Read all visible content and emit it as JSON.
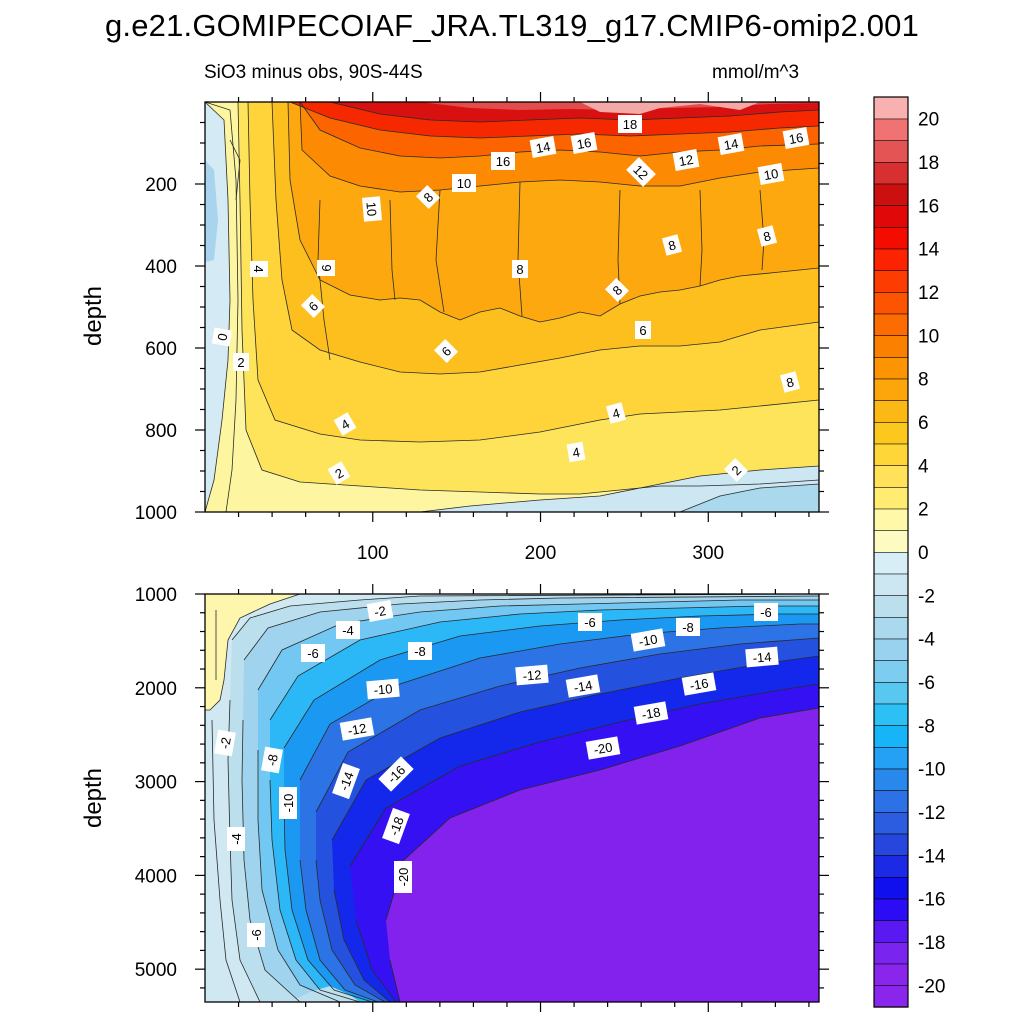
{
  "title": "g.e21.GOMIPECOIAF_JRA.TL319_g17.CMIP6-omip2.001",
  "subtitle_left": "SiO3 minus obs, 90S-44S",
  "subtitle_right": "mmol/m^3",
  "colors": {
    "contour_line": "#222222",
    "label_box": "#ffffff"
  },
  "chart_data": [
    {
      "type": "contour",
      "name": "upper panel",
      "title": "SiO3 minus obs, 90S-44S",
      "units": "mmol/m^3",
      "xlabel": "",
      "ylabel": "depth",
      "xlim": [
        0,
        366
      ],
      "ylim": [
        1000,
        0
      ],
      "x_ticks": [
        "100",
        "200",
        "300"
      ],
      "y_ticks": [
        "200",
        "400",
        "600",
        "800",
        "1000"
      ],
      "contour_labels": [
        "18",
        "16",
        "14",
        "16",
        "14",
        "16",
        "12",
        "12",
        "10",
        "10",
        "10",
        "8",
        "8",
        "8",
        "8",
        "8",
        "4",
        "6",
        "6",
        "6",
        "6",
        "8",
        "0",
        "2",
        "4",
        "4",
        "4",
        "2",
        "2",
        "0"
      ]
    },
    {
      "type": "contour",
      "name": "lower panel",
      "xlabel": "",
      "ylabel": "depth",
      "xlim": [
        0,
        366
      ],
      "ylim": [
        5350,
        1000
      ],
      "y_ticks": [
        "1000",
        "2000",
        "3000",
        "4000",
        "5000"
      ],
      "contour_labels": [
        "-2",
        "-4",
        "-6",
        "-6",
        "-6",
        "-8",
        "-10",
        "-8",
        "-10",
        "-12",
        "-14",
        "-16",
        "-14",
        "-12",
        "-18",
        "-20",
        "-2",
        "-8",
        "-10",
        "-14",
        "-16",
        "-18",
        "-4",
        "-20",
        "-6"
      ]
    },
    {
      "type": "colorbar",
      "levels": [
        -21,
        -20,
        -19,
        -18,
        -17,
        -16,
        -15,
        -14,
        -13,
        -12,
        -11,
        -10,
        -9,
        -8,
        -7,
        -6,
        -5,
        -4,
        -3,
        -2,
        -1,
        0,
        1,
        2,
        3,
        4,
        5,
        6,
        7,
        8,
        9,
        10,
        11,
        12,
        13,
        14,
        15,
        16,
        17,
        18,
        19,
        20,
        21
      ],
      "tick_labels": [
        "20",
        "18",
        "16",
        "14",
        "12",
        "10",
        "8",
        "6",
        "4",
        "2",
        "0",
        "-2",
        "-4",
        "-6",
        "-8",
        "-10",
        "-12",
        "-14",
        "-16",
        "-18",
        "-20"
      ],
      "colors": [
        "#8a26ec",
        "#8a26ec",
        "#7a24f0",
        "#5a18f2",
        "#2c0cf4",
        "#1010ee",
        "#1c2ae6",
        "#2646de",
        "#2c5ce0",
        "#2c72e6",
        "#2888ec",
        "#24a0f4",
        "#18b4f8",
        "#2cc0f4",
        "#58c8f0",
        "#7ccdf0",
        "#98d2ee",
        "#aad8ec",
        "#bcdfee",
        "#cce6f2",
        "#d8eef6",
        "#fdfac2",
        "#fff8a8",
        "#ffec70",
        "#ffe25a",
        "#ffd638",
        "#fdc81e",
        "#fcb814",
        "#fca60c",
        "#fc9404",
        "#fc8000",
        "#fc6c00",
        "#fc5400",
        "#fc3c00",
        "#fc2400",
        "#f40c00",
        "#e00808",
        "#cc1010",
        "#d83030",
        "#e45454",
        "#f07272",
        "#f8b0b0"
      ]
    }
  ]
}
